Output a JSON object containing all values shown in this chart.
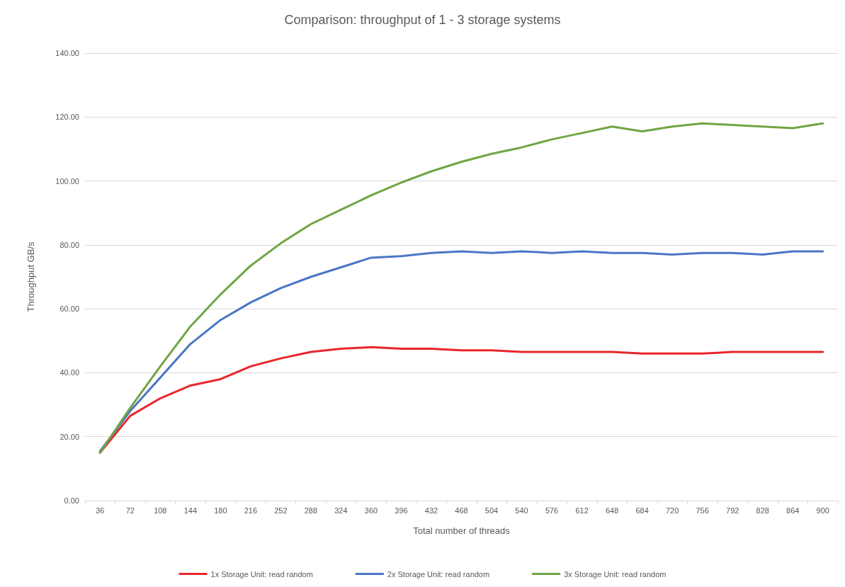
{
  "chart_data": {
    "type": "line",
    "title": "Comparison: throughput of 1 - 3 storage systems",
    "xlabel": "Total number of threads",
    "ylabel": "Throughput GB/s",
    "categories": [
      "36",
      "72",
      "108",
      "144",
      "180",
      "216",
      "252",
      "288",
      "324",
      "360",
      "396",
      "432",
      "468",
      "504",
      "540",
      "576",
      "612",
      "648",
      "684",
      "720",
      "756",
      "792",
      "828",
      "864",
      "900"
    ],
    "series": [
      {
        "name": "1x Storage Unit: read random",
        "color": "#e8262b",
        "values": [
          15,
          26.5,
          32,
          36,
          38,
          42,
          44.5,
          46.5,
          47.5,
          48,
          47.5,
          47.5,
          47,
          47,
          46.5,
          46.5,
          46.5,
          46.5,
          46,
          46,
          46,
          46.5,
          46.5,
          46.5,
          46.5
        ]
      },
      {
        "name": "2x Storage Unit: read random",
        "color": "#4a76c4",
        "values": [
          15.5,
          28,
          38.5,
          49,
          56.5,
          62,
          66.5,
          70,
          73,
          76,
          76.5,
          77.5,
          78,
          77.5,
          78,
          77.5,
          78,
          77.5,
          77.5,
          77,
          77.5,
          77.5,
          77,
          78,
          78
        ]
      },
      {
        "name": "3x Storage Unit: read random",
        "color": "#6fa544",
        "values": [
          15,
          29,
          42,
          54.5,
          64.5,
          73.5,
          80.5,
          86.5,
          91,
          95.5,
          99.5,
          103,
          106,
          108.5,
          110.5,
          113,
          115,
          117,
          115.5,
          117,
          118,
          117.5,
          117,
          116.5,
          118
        ]
      }
    ],
    "ylim": [
      0,
      140
    ],
    "yticks": [
      {
        "value": 0,
        "label": "0.00"
      },
      {
        "value": 20,
        "label": "20.00"
      },
      {
        "value": 40,
        "label": "40.00"
      },
      {
        "value": 60,
        "label": "60.00"
      },
      {
        "value": 80,
        "label": "80.00"
      },
      {
        "value": 100,
        "label": "100.00"
      },
      {
        "value": 120,
        "label": "120.00"
      },
      {
        "value": 140,
        "label": "140.00"
      }
    ],
    "grid": "y",
    "legend": "bottom",
    "marker": "none",
    "line_style": "solid"
  }
}
